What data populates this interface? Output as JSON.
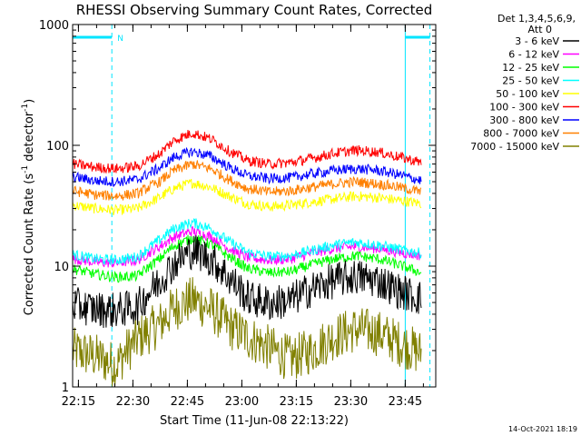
{
  "chart_data": {
    "type": "line",
    "title": "RHESSI Observing Summary Count Rates, Corrected",
    "xlabel": "Start Time (11-Jun-08 22:13:22)",
    "ylabel_main": "Corrected Count Rate (s",
    "ylabel_exp1": "-1",
    "ylabel_mid": " detector",
    "ylabel_exp2": "-1",
    "ylabel_end": ")",
    "ylog": true,
    "ylim": [
      1,
      1000
    ],
    "xlim_minutes": [
      0,
      100
    ],
    "x_ticks": [
      {
        "minute": 1.6,
        "label": "22:15"
      },
      {
        "minute": 16.6,
        "label": "22:30"
      },
      {
        "minute": 31.6,
        "label": "22:45"
      },
      {
        "minute": 46.6,
        "label": "23:00"
      },
      {
        "minute": 61.6,
        "label": "23:15"
      },
      {
        "minute": 76.6,
        "label": "23:30"
      },
      {
        "minute": 91.6,
        "label": "23:45"
      }
    ],
    "y_ticks": [
      {
        "value": 1,
        "label": "1"
      },
      {
        "value": 10,
        "label": "10"
      },
      {
        "value": 100,
        "label": "100"
      },
      {
        "value": 1000,
        "label": "1000"
      }
    ],
    "legend_header": [
      "Det 1,3,4,5,6,9,",
      "Att 0"
    ],
    "series": [
      {
        "name": "3 - 6 keV",
        "color": "#000000",
        "x": [
          0,
          6,
          12,
          18,
          24,
          28,
          33,
          38,
          43,
          48,
          54,
          60,
          66,
          72,
          78,
          84,
          90,
          96
        ],
        "y": [
          4.8,
          4.4,
          4.3,
          4.6,
          7.5,
          10.5,
          13.5,
          11.5,
          8.0,
          5.5,
          4.9,
          5.2,
          6.5,
          7.6,
          8.2,
          7.6,
          6.2,
          5.4
        ]
      },
      {
        "name": "6 - 12 keV",
        "color": "#ff00ff",
        "x": [
          0,
          6,
          12,
          18,
          24,
          28,
          33,
          38,
          43,
          48,
          54,
          60,
          66,
          72,
          78,
          84,
          90,
          96
        ],
        "y": [
          11.5,
          10.8,
          10.6,
          11.2,
          14.5,
          17.5,
          19.5,
          17.5,
          14.0,
          11.8,
          11.2,
          11.5,
          12.8,
          14.0,
          14.5,
          14.0,
          13.0,
          12.2
        ]
      },
      {
        "name": "12 - 25 keV",
        "color": "#00ff00",
        "x": [
          0,
          6,
          12,
          18,
          24,
          28,
          33,
          38,
          43,
          48,
          54,
          60,
          66,
          72,
          78,
          84,
          90,
          96
        ],
        "y": [
          9.5,
          8.6,
          8.1,
          8.3,
          11.5,
          14.8,
          17.0,
          15.2,
          12.0,
          9.6,
          8.8,
          9.0,
          10.3,
          11.5,
          12.2,
          11.5,
          10.2,
          8.8
        ]
      },
      {
        "name": "25 - 50 keV",
        "color": "#00ffff",
        "x": [
          0,
          6,
          12,
          18,
          24,
          28,
          33,
          38,
          43,
          48,
          54,
          60,
          66,
          72,
          78,
          84,
          90,
          96
        ],
        "y": [
          12.5,
          11.5,
          11.2,
          12.0,
          16.5,
          20.5,
          23.0,
          20.5,
          16.0,
          13.0,
          12.0,
          12.2,
          13.5,
          15.0,
          15.8,
          15.0,
          13.8,
          12.8
        ]
      },
      {
        "name": "50 - 100 keV",
        "color": "#ffff00",
        "x": [
          0,
          6,
          12,
          18,
          24,
          28,
          33,
          38,
          43,
          48,
          54,
          60,
          66,
          72,
          78,
          84,
          90,
          96
        ],
        "y": [
          32,
          30,
          29,
          30,
          37,
          44,
          49,
          45,
          38,
          33,
          31,
          32,
          34,
          36,
          38,
          37,
          35,
          33
        ]
      },
      {
        "name": "100 - 300 keV",
        "color": "#ff0000",
        "x": [
          0,
          6,
          12,
          18,
          24,
          28,
          33,
          38,
          43,
          48,
          54,
          60,
          66,
          72,
          78,
          84,
          90,
          96
        ],
        "y": [
          70,
          66,
          64,
          67,
          85,
          110,
          127,
          113,
          90,
          75,
          70,
          72,
          78,
          86,
          91,
          88,
          80,
          72
        ]
      },
      {
        "name": "300 - 800 keV",
        "color": "#0000ff",
        "x": [
          0,
          6,
          12,
          18,
          24,
          28,
          33,
          38,
          43,
          48,
          54,
          60,
          66,
          72,
          78,
          84,
          90,
          96
        ],
        "y": [
          55,
          51,
          50,
          52,
          65,
          80,
          89,
          81,
          66,
          56,
          53,
          54,
          58,
          62,
          64,
          62,
          57,
          51
        ]
      },
      {
        "name": "800 - 7000 keV",
        "color": "#ff8000",
        "x": [
          0,
          6,
          12,
          18,
          24,
          28,
          33,
          38,
          43,
          48,
          54,
          60,
          66,
          72,
          78,
          84,
          90,
          96
        ],
        "y": [
          42,
          39,
          38,
          40,
          50,
          62,
          70,
          64,
          52,
          44,
          41,
          42,
          45,
          48,
          50,
          48,
          45,
          41
        ]
      },
      {
        "name": "7000 - 15000 keV",
        "color": "#808000",
        "x": [
          0,
          6,
          12,
          18,
          24,
          28,
          33,
          38,
          43,
          48,
          54,
          60,
          66,
          72,
          78,
          84,
          90,
          96
        ],
        "y": [
          2,
          1.8,
          1.5,
          2.5,
          3.3,
          4.5,
          5.3,
          4.4,
          3.2,
          2.6,
          2.1,
          1.7,
          2.0,
          2.6,
          3.0,
          2.8,
          2.3,
          1.9
        ]
      }
    ],
    "markers": {
      "solid_lines_minutes": [
        0,
        91.6
      ],
      "dashed_lines_minutes": [
        10.8,
        98.4
      ],
      "bars": [
        [
          0,
          10.8
        ],
        [
          91.6,
          98.4
        ]
      ],
      "bar_value": 1000,
      "bar_label": "N"
    }
  },
  "footer_date": "14-Oct-2021 18:19"
}
